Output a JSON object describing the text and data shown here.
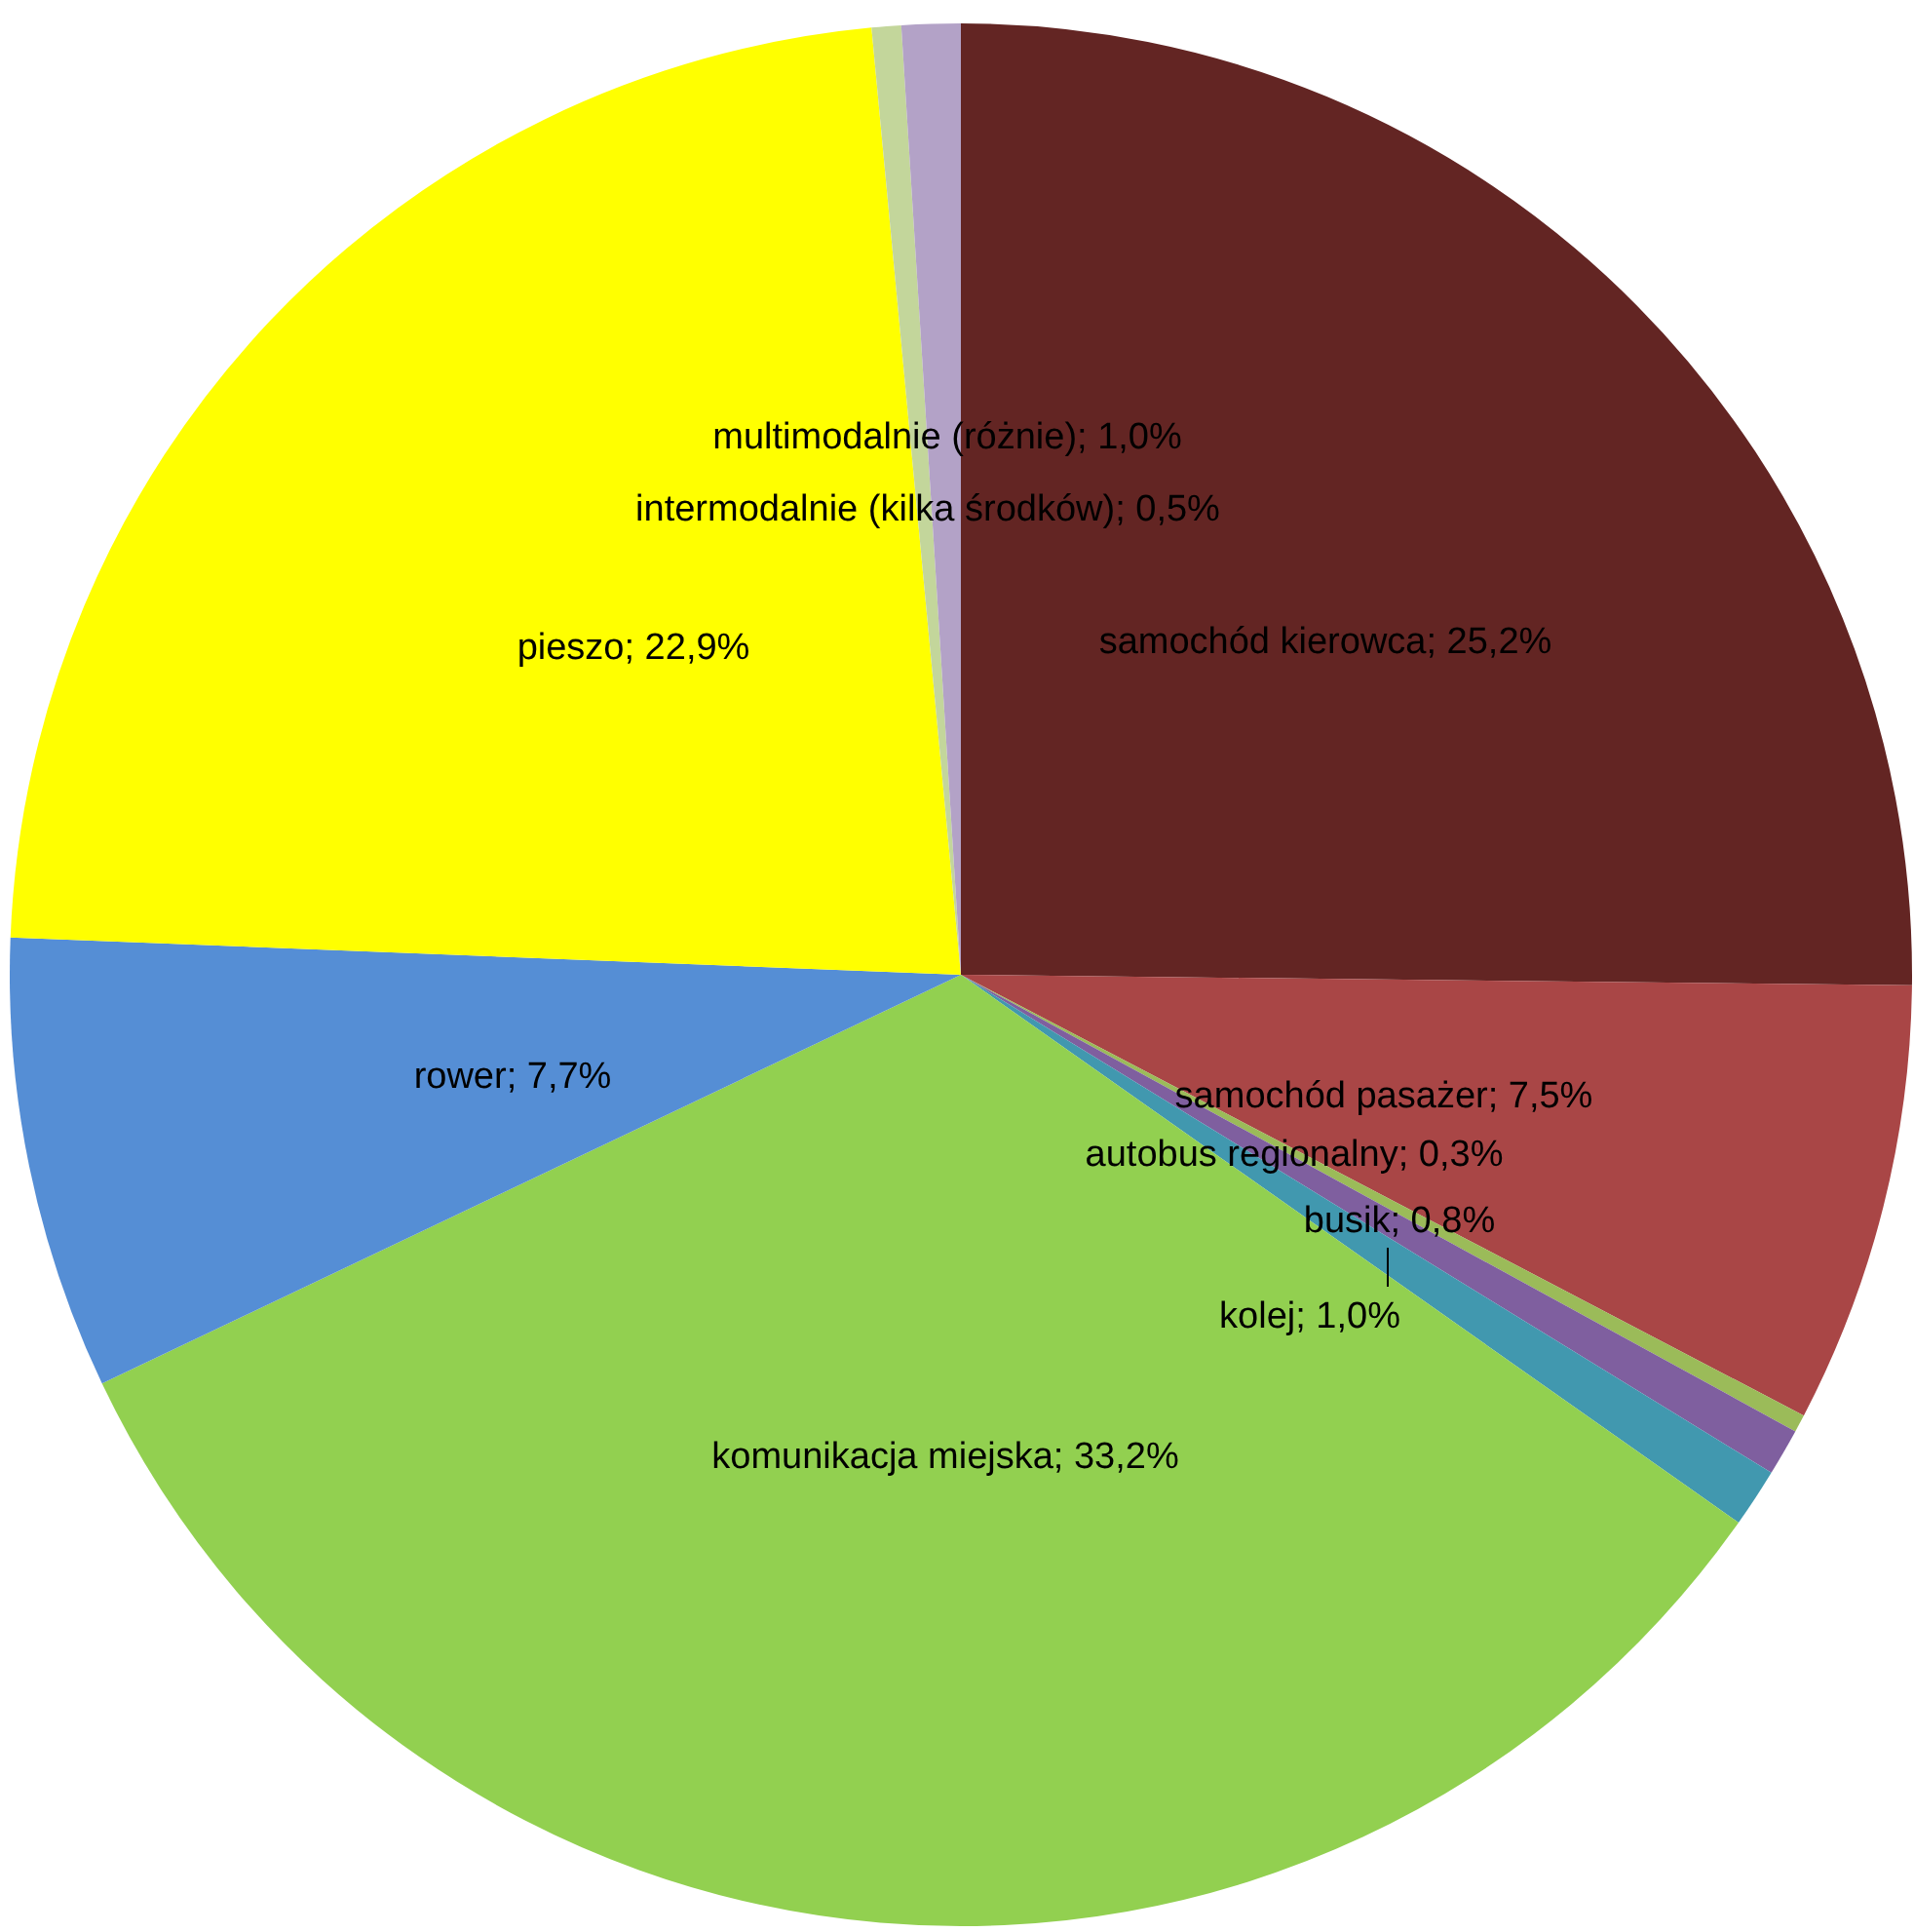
{
  "chart_data": {
    "type": "pie",
    "categories": [
      "samochód kierowca",
      "samochód pasażer",
      "autobus regionalny",
      "busik",
      "kolej",
      "komunikacja miejska",
      "rower",
      "pieszo",
      "intermodalnie (kilka środków)",
      "multimodalnie (różnie)"
    ],
    "values": [
      25.2,
      7.5,
      0.3,
      0.8,
      1.0,
      33.2,
      7.7,
      22.9,
      0.5,
      1.0
    ],
    "value_labels": [
      "25,2%",
      "7,5%",
      "0,3%",
      "0,8%",
      "1,0%",
      "33,2%",
      "7,7%",
      "22,9%",
      "0,5%",
      "1,0%"
    ],
    "colors": [
      "#632523",
      "#a94646",
      "#9bbb59",
      "#7f5f9f",
      "#4198af",
      "#92d050",
      "#558ed5",
      "#ffff00",
      "#c3d69b",
      "#b3a2c7"
    ],
    "legend": false
  }
}
